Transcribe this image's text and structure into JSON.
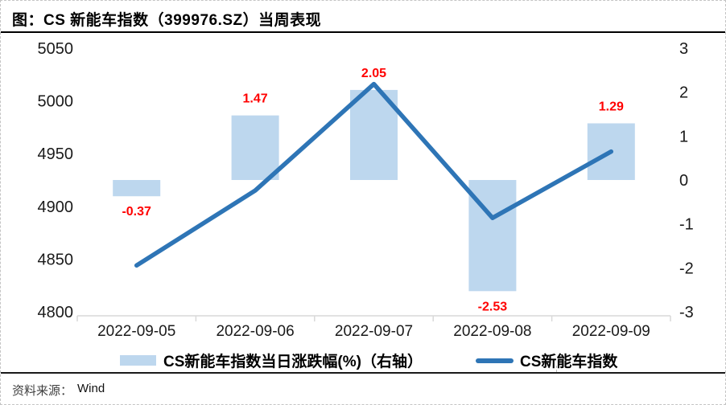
{
  "title": "图：CS 新能车指数（399976.SZ）当周表现",
  "source": {
    "label": "资料来源：",
    "value": "Wind"
  },
  "legend": [
    {
      "type": "bar",
      "label": "CS新能车指数当日涨跌幅(%)（右轴）"
    },
    {
      "type": "line",
      "label": "CS新能车指数"
    }
  ],
  "colors": {
    "bar": "#BDD7EE",
    "line": "#2E75B6",
    "data_label": "#FF0000",
    "axis_text": "#1a1a1a",
    "axis_line": "#D9D9D9"
  },
  "chart_data": {
    "type": "combo-bar-line",
    "categories": [
      "2022-09-05",
      "2022-09-06",
      "2022-09-07",
      "2022-09-08",
      "2022-09-09"
    ],
    "series": [
      {
        "name": "CS新能车指数当日涨跌幅(%)（右轴）",
        "type": "bar",
        "axis": "right",
        "values": [
          -0.37,
          1.47,
          2.05,
          -2.53,
          1.29
        ],
        "labels": [
          "-0.37",
          "1.47",
          "2.05",
          "-2.53",
          "1.29"
        ]
      },
      {
        "name": "CS新能车指数",
        "type": "line",
        "axis": "left",
        "values": [
          4844,
          4915,
          5016,
          4889,
          4952
        ]
      }
    ],
    "left_axis": {
      "ticks": [
        5050,
        5000,
        4950,
        4900,
        4850,
        4800
      ],
      "range": [
        4800,
        5050
      ]
    },
    "right_axis": {
      "ticks": [
        3,
        2,
        1,
        0,
        -1,
        -2,
        -3
      ],
      "range": [
        -3,
        3
      ]
    },
    "grid": false,
    "legend_position": "bottom"
  }
}
